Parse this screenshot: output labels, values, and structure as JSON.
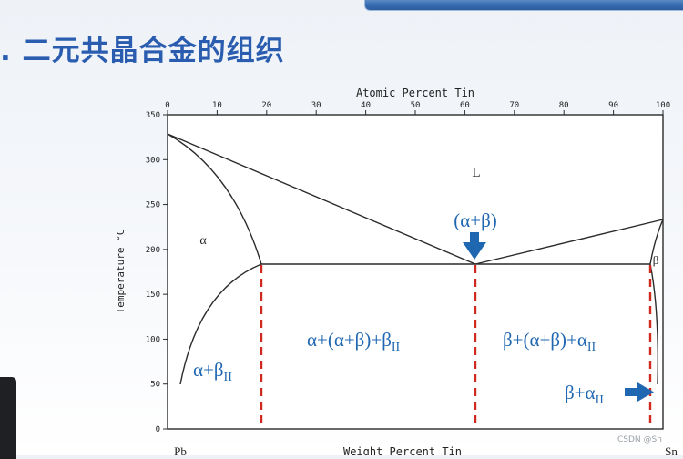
{
  "slide": {
    "title": ". 二元共晶合金的组织"
  },
  "diagram": {
    "x_axis_top": {
      "title": "Atomic Percent Tin",
      "ticks": [
        "0",
        "10",
        "20",
        "30",
        "40",
        "50",
        "60",
        "70",
        "80",
        "90",
        "100"
      ]
    },
    "x_axis_bottom": {
      "title": "Weight Percent Tin",
      "left_end": "Pb",
      "right_end": "Sn"
    },
    "y_axis": {
      "title": "Temperature °C",
      "ticks": [
        "0",
        "50",
        "100",
        "150",
        "200",
        "250",
        "300",
        "350"
      ]
    },
    "region_labels": {
      "liquid": "L",
      "alpha": "α",
      "beta": "β",
      "eutectic_point": "(α+β)",
      "alpha_region": "α+β",
      "alpha_region_sub": "II",
      "middle_left": "α+(α+β)+β",
      "middle_left_sub": "II",
      "middle_right": "β+(α+β)+α",
      "middle_right_sub": "II",
      "beta_region": "β+α",
      "beta_region_sub": "II"
    },
    "colors": {
      "line": "#2b2b2b",
      "label": "#1f67b1",
      "marker": "#cf2a1d",
      "arrow": "#1f67b1"
    }
  },
  "watermark": {
    "text": "CSDN @Sn"
  }
}
